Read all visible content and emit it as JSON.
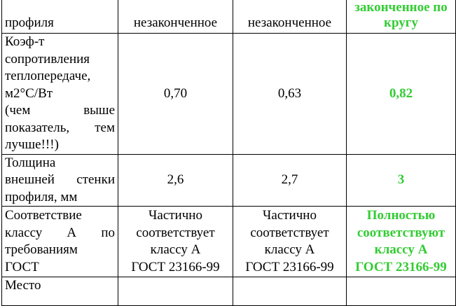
{
  "accent_green": "#33cc33",
  "rows": [
    {
      "label_lines": [
        "профиля"
      ],
      "a": [
        "незаконченное"
      ],
      "b": [
        "незаконченное"
      ],
      "c": [
        "законченное по",
        "кругу"
      ]
    },
    {
      "label_lines": [
        "Коэф-т",
        "сопротивления",
        "теплопередаче,",
        "м2°С/Вт",
        "(чем выше",
        "показатель, тем",
        "лучше!!!)"
      ],
      "a": [
        "0,70"
      ],
      "b": [
        "0,63"
      ],
      "c": [
        "0,82"
      ]
    },
    {
      "label_lines": [
        "Толщина",
        "внешней стенки",
        "профиля, мм"
      ],
      "a": [
        "2,6"
      ],
      "b": [
        "2,7"
      ],
      "c": [
        "3"
      ]
    },
    {
      "label_lines": [
        "Соответствие",
        "классу А по",
        "требованиям",
        "ГОСТ"
      ],
      "a": [
        "Частично",
        "соответствует",
        "классу А",
        "ГОСТ 23166-99"
      ],
      "b": [
        "Частично",
        "соответствует",
        "классу А",
        "ГОСТ 23166-99"
      ],
      "c": [
        "Полностью",
        "соответствуют",
        "классу А",
        "ГОСТ 23166-99"
      ]
    },
    {
      "label_lines": [
        "Место"
      ],
      "a": [],
      "b": [],
      "c": []
    }
  ]
}
